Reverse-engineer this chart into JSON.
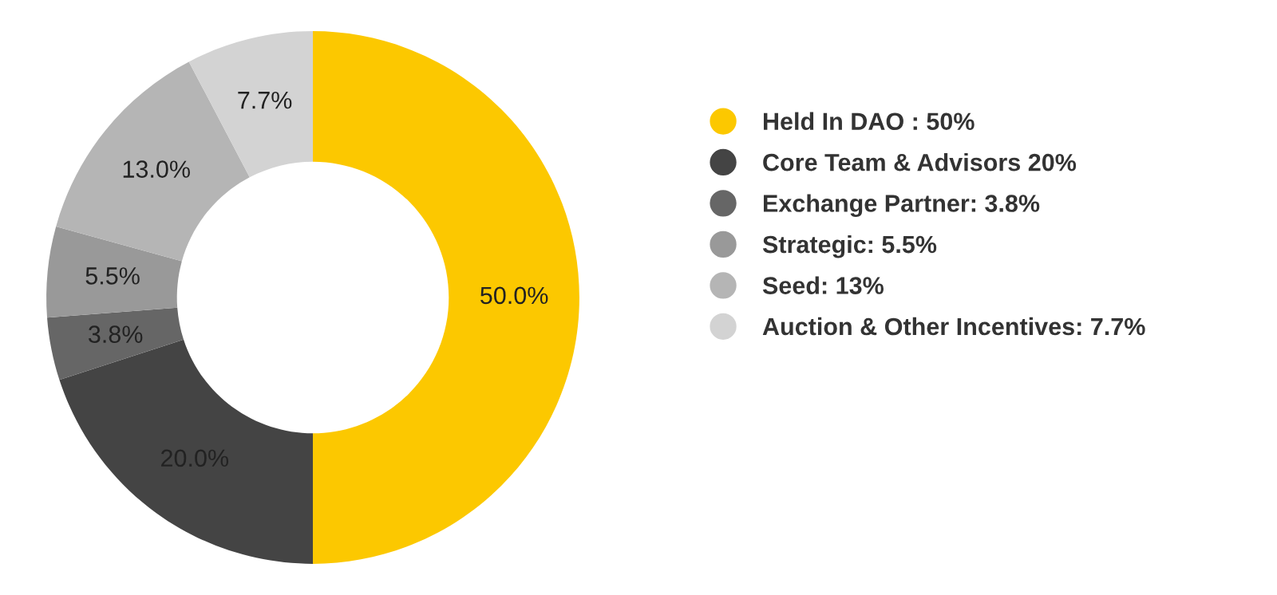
{
  "chart_data": {
    "type": "donut",
    "categories": [
      "Held In DAO : 50%",
      "Core Team & Advisors 20%",
      "Exchange Partner: 3.8%",
      "Strategic: 5.5%",
      "Seed: 13%",
      "Auction & Other Incentives: 7.7%"
    ],
    "values": [
      50,
      20,
      3.8,
      5.5,
      13,
      7.7
    ],
    "value_labels": [
      "50.0%",
      "20.0%",
      "3.8%",
      "5.5%",
      "13.0%",
      "7.7%"
    ],
    "colors": [
      "#fcc800",
      "#444444",
      "#666666",
      "#999999",
      "#b5b5b5",
      "#d3d3d3"
    ],
    "legend": "right"
  }
}
